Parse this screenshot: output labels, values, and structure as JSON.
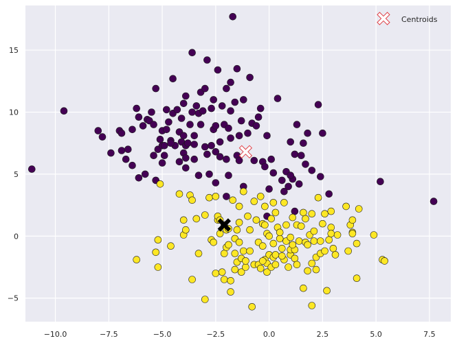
{
  "chart_data": {
    "type": "scatter",
    "title": "",
    "xlabel": "",
    "ylabel": "",
    "xlim": [
      -11.4,
      8.5
    ],
    "ylim": [
      -6.9,
      18.6
    ],
    "xticks": [
      -10,
      -7.5,
      -5,
      -2.5,
      0,
      2.5,
      5,
      7.5
    ],
    "xtick_labels": [
      "−10.0",
      "−7.5",
      "−5.0",
      "−2.5",
      "0.0",
      "2.5",
      "5.0",
      "7.5"
    ],
    "yticks": [
      -5,
      0,
      5,
      10,
      15
    ],
    "ytick_labels": [
      "−5",
      "0",
      "5",
      "10",
      "15"
    ],
    "grid": true,
    "legend": {
      "position": "top-right",
      "entries": [
        "Centroids"
      ]
    },
    "colors": {
      "cluster0": "#440154",
      "cluster1": "#fde725",
      "centroid_fill": "#ffffff",
      "centroid_edge": "#e0434a",
      "axes_bg": "#eaeaf2",
      "grid": "#ffffff"
    },
    "series": [
      {
        "cluster": 0,
        "color": "#440154",
        "points": [
          [
            -11.1,
            5.4
          ],
          [
            -9.6,
            10.1
          ],
          [
            -8.0,
            8.5
          ],
          [
            -7.8,
            8.0
          ],
          [
            -7.4,
            6.7
          ],
          [
            -7.0,
            8.5
          ],
          [
            -6.9,
            8.3
          ],
          [
            -6.9,
            6.9
          ],
          [
            -6.7,
            6.2
          ],
          [
            -6.6,
            7.0
          ],
          [
            -6.4,
            5.7
          ],
          [
            -6.4,
            8.6
          ],
          [
            -6.2,
            10.3
          ],
          [
            -6.1,
            4.7
          ],
          [
            -6.1,
            9.6
          ],
          [
            -5.9,
            8.9
          ],
          [
            -5.8,
            5.0
          ],
          [
            -5.7,
            9.4
          ],
          [
            -5.6,
            9.3
          ],
          [
            -5.5,
            10.0
          ],
          [
            -5.4,
            6.5
          ],
          [
            -5.4,
            9.0
          ],
          [
            -5.3,
            11.9
          ],
          [
            -5.3,
            4.5
          ],
          [
            -5.2,
            7.0
          ],
          [
            -5.1,
            7.8
          ],
          [
            -5.0,
            7.3
          ],
          [
            -5.0,
            8.5
          ],
          [
            -5.0,
            5.9
          ],
          [
            -4.9,
            7.3
          ],
          [
            -4.9,
            6.5
          ],
          [
            -4.8,
            8.6
          ],
          [
            -4.8,
            10.2
          ],
          [
            -4.7,
            9.2
          ],
          [
            -4.6,
            7.7
          ],
          [
            -4.5,
            9.9
          ],
          [
            -4.5,
            12.7
          ],
          [
            -4.4,
            7.3
          ],
          [
            -4.3,
            10.2
          ],
          [
            -4.2,
            6.0
          ],
          [
            -4.2,
            8.4
          ],
          [
            -4.1,
            9.5
          ],
          [
            -4.1,
            7.6
          ],
          [
            -4.0,
            10.7
          ],
          [
            -4.0,
            6.7
          ],
          [
            -4.0,
            8.1
          ],
          [
            -3.9,
            6.3
          ],
          [
            -3.9,
            5.5
          ],
          [
            -3.9,
            11.3
          ],
          [
            -3.9,
            7.3
          ],
          [
            -3.8,
            7.5
          ],
          [
            -3.7,
            9.0
          ],
          [
            -3.6,
            10.0
          ],
          [
            -3.6,
            14.8
          ],
          [
            -3.5,
            7.4
          ],
          [
            -3.5,
            6.2
          ],
          [
            -3.5,
            8.1
          ],
          [
            -3.4,
            10.5
          ],
          [
            -3.3,
            4.9
          ],
          [
            -3.3,
            9.9
          ],
          [
            -3.2,
            11.6
          ],
          [
            -3.2,
            9.0
          ],
          [
            -3.1,
            10.1
          ],
          [
            -3.0,
            7.2
          ],
          [
            -3.0,
            11.9
          ],
          [
            -2.9,
            14.2
          ],
          [
            -2.9,
            6.6
          ],
          [
            -2.8,
            5.0
          ],
          [
            -2.7,
            10.3
          ],
          [
            -2.7,
            7.3
          ],
          [
            -2.6,
            8.6
          ],
          [
            -2.6,
            11.0
          ],
          [
            -2.5,
            8.9
          ],
          [
            -2.5,
            6.8
          ],
          [
            -2.4,
            13.4
          ],
          [
            -2.3,
            7.6
          ],
          [
            -2.3,
            6.4
          ],
          [
            -2.2,
            10.5
          ],
          [
            -2.1,
            9.0
          ],
          [
            -2.0,
            11.9
          ],
          [
            -2.0,
            6.2
          ],
          [
            -1.9,
            4.9
          ],
          [
            -1.9,
            8.7
          ],
          [
            -1.8,
            10.1
          ],
          [
            -1.8,
            12.4
          ],
          [
            -1.8,
            7.9
          ],
          [
            -1.7,
            17.7
          ],
          [
            -1.6,
            10.8
          ],
          [
            -1.5,
            13.5
          ],
          [
            -1.5,
            6.5
          ],
          [
            -1.4,
            8.1
          ],
          [
            -1.4,
            6.1
          ],
          [
            -1.3,
            9.3
          ],
          [
            -1.2,
            11.0
          ],
          [
            -1.2,
            4.0
          ],
          [
            -1.0,
            8.3
          ],
          [
            -0.9,
            12.8
          ],
          [
            -0.8,
            9.1
          ],
          [
            -0.7,
            6.1
          ],
          [
            -0.6,
            8.9
          ],
          [
            -0.5,
            9.6
          ],
          [
            -0.4,
            10.3
          ],
          [
            -0.3,
            6.0
          ],
          [
            -0.2,
            5.6
          ],
          [
            -0.1,
            8.1
          ],
          [
            0.0,
            3.8
          ],
          [
            0.1,
            6.2
          ],
          [
            0.2,
            5.1
          ],
          [
            0.4,
            11.1
          ],
          [
            0.6,
            4.5
          ],
          [
            0.8,
            5.2
          ],
          [
            1.0,
            7.6
          ],
          [
            1.1,
            4.6
          ],
          [
            1.2,
            6.6
          ],
          [
            1.3,
            9.0
          ],
          [
            1.5,
            6.5
          ],
          [
            1.6,
            7.5
          ],
          [
            1.7,
            5.8
          ],
          [
            1.8,
            8.3
          ],
          [
            2.0,
            5.3
          ],
          [
            2.3,
            10.6
          ],
          [
            2.4,
            4.8
          ],
          [
            2.5,
            8.3
          ],
          [
            2.8,
            3.4
          ],
          [
            5.2,
            4.4
          ],
          [
            7.7,
            2.8
          ],
          [
            -0.1,
            1.6
          ],
          [
            1.2,
            2.0
          ],
          [
            0.9,
            4.0
          ],
          [
            1.4,
            4.2
          ],
          [
            1.0,
            4.9
          ],
          [
            0.7,
            3.6
          ],
          [
            -2.5,
            4.3
          ],
          [
            -2.0,
            3.2
          ],
          [
            -4.6,
            7.5
          ]
        ]
      },
      {
        "cluster": 1,
        "color": "#fde725",
        "points": [
          [
            -6.2,
            -1.9
          ],
          [
            -5.2,
            -2.5
          ],
          [
            -5.2,
            -0.3
          ],
          [
            -5.3,
            -1.3
          ],
          [
            -5.1,
            4.2
          ],
          [
            -4.6,
            -0.8
          ],
          [
            -4.2,
            3.4
          ],
          [
            -4.0,
            0.1
          ],
          [
            -4.0,
            1.3
          ],
          [
            -3.9,
            0.5
          ],
          [
            -3.7,
            3.3
          ],
          [
            -3.6,
            2.9
          ],
          [
            -3.6,
            -3.5
          ],
          [
            -3.4,
            1.4
          ],
          [
            -3.3,
            -1.4
          ],
          [
            -3.0,
            1.7
          ],
          [
            -3.0,
            -5.1
          ],
          [
            -2.8,
            3.1
          ],
          [
            -2.7,
            -0.3
          ],
          [
            -2.6,
            -0.5
          ],
          [
            -2.5,
            -3.0
          ],
          [
            -2.5,
            3.2
          ],
          [
            -2.4,
            1.3
          ],
          [
            -2.4,
            1.6
          ],
          [
            -2.3,
            0.2
          ],
          [
            -2.2,
            -2.9
          ],
          [
            -2.1,
            -3.5
          ],
          [
            -2.1,
            -1.4
          ],
          [
            -2.1,
            0.9
          ],
          [
            -2.0,
            0.5
          ],
          [
            -2.0,
            -0.9
          ],
          [
            -1.9,
            -0.7
          ],
          [
            -1.8,
            -4.5
          ],
          [
            -1.8,
            -3.6
          ],
          [
            -1.7,
            2.9
          ],
          [
            -1.6,
            -0.2
          ],
          [
            -1.6,
            -2.7
          ],
          [
            -1.5,
            -2.1
          ],
          [
            -1.5,
            0.5
          ],
          [
            -1.4,
            2.4
          ],
          [
            -1.4,
            1.1
          ],
          [
            -1.3,
            -2.9
          ],
          [
            -1.3,
            -1.8
          ],
          [
            -1.2,
            -1.2
          ],
          [
            -1.2,
            3.6
          ],
          [
            -1.1,
            -2.5
          ],
          [
            -1.1,
            -2.0
          ],
          [
            -1.0,
            1.6
          ],
          [
            -0.9,
            0.5
          ],
          [
            -0.8,
            -5.7
          ],
          [
            -0.7,
            2.8
          ],
          [
            -0.7,
            -2.3
          ],
          [
            -0.6,
            1.3
          ],
          [
            -0.5,
            -2.3
          ],
          [
            -0.5,
            -0.5
          ],
          [
            -0.4,
            3.2
          ],
          [
            -0.4,
            -2.6
          ],
          [
            -0.3,
            1.0
          ],
          [
            -0.3,
            -0.8
          ],
          [
            -0.2,
            -1.9
          ],
          [
            -0.2,
            2.4
          ],
          [
            -0.1,
            -2.9
          ],
          [
            -0.1,
            -2.2
          ],
          [
            -0.1,
            0.2
          ],
          [
            0.0,
            -1.5
          ],
          [
            0.0,
            0.0
          ],
          [
            0.1,
            -2.5
          ],
          [
            0.1,
            1.4
          ],
          [
            0.2,
            2.7
          ],
          [
            0.2,
            -0.6
          ],
          [
            0.2,
            -1.7
          ],
          [
            0.3,
            1.9
          ],
          [
            0.3,
            -2.3
          ],
          [
            0.4,
            0.7
          ],
          [
            0.5,
            -0.2
          ],
          [
            0.6,
            -1.0
          ],
          [
            0.7,
            2.7
          ],
          [
            0.7,
            -1.9
          ],
          [
            0.8,
            -0.4
          ],
          [
            0.8,
            0.9
          ],
          [
            0.9,
            -2.5
          ],
          [
            1.0,
            -1.5
          ],
          [
            1.0,
            -1.1
          ],
          [
            1.0,
            -0.1
          ],
          [
            1.1,
            1.5
          ],
          [
            1.2,
            -1.8
          ],
          [
            1.2,
            -1.1
          ],
          [
            1.3,
            0.9
          ],
          [
            1.3,
            -2.3
          ],
          [
            1.4,
            -0.4
          ],
          [
            1.5,
            0.8
          ],
          [
            1.6,
            -4.2
          ],
          [
            1.6,
            1.9
          ],
          [
            1.7,
            1.4
          ],
          [
            1.7,
            -0.5
          ],
          [
            1.8,
            -2.8
          ],
          [
            1.9,
            0.1
          ],
          [
            2.0,
            1.8
          ],
          [
            2.0,
            -2.2
          ],
          [
            2.0,
            -5.6
          ],
          [
            2.1,
            0.4
          ],
          [
            2.1,
            -0.4
          ],
          [
            2.2,
            -2.7
          ],
          [
            2.2,
            -1.7
          ],
          [
            2.3,
            3.1
          ],
          [
            2.4,
            -0.4
          ],
          [
            2.4,
            -1.4
          ],
          [
            2.5,
            1.0
          ],
          [
            2.6,
            1.8
          ],
          [
            2.6,
            -1.2
          ],
          [
            2.7,
            -4.4
          ],
          [
            2.8,
            -0.3
          ],
          [
            2.9,
            0.7
          ],
          [
            2.9,
            0.2
          ],
          [
            2.9,
            2.0
          ],
          [
            3.0,
            -1.0
          ],
          [
            3.1,
            -1.5
          ],
          [
            3.2,
            0.1
          ],
          [
            3.6,
            2.4
          ],
          [
            3.7,
            -1.2
          ],
          [
            3.8,
            0.9
          ],
          [
            3.9,
            0.3
          ],
          [
            3.9,
            1.3
          ],
          [
            3.9,
            0.2
          ],
          [
            4.1,
            -0.6
          ],
          [
            4.1,
            -3.4
          ],
          [
            4.2,
            2.2
          ],
          [
            4.9,
            0.1
          ],
          [
            5.3,
            -1.9
          ],
          [
            5.4,
            -2.0
          ],
          [
            -1.9,
            0.6
          ],
          [
            -2.3,
            1.3
          ],
          [
            -0.3,
            -2.0
          ],
          [
            0.5,
            0.3
          ],
          [
            1.8,
            -0.7
          ],
          [
            -1.4,
            -0.5
          ],
          [
            -0.9,
            -1.2
          ],
          [
            0.6,
            -1.6
          ],
          [
            -1.6,
            -1.4
          ],
          [
            1.1,
            -0.7
          ],
          [
            0.3,
            -1.5
          ],
          [
            -0.2,
            0.9
          ]
        ]
      }
    ],
    "centroids": [
      [
        -1.1,
        6.8
      ],
      [
        -2.1,
        0.9
      ]
    ]
  }
}
